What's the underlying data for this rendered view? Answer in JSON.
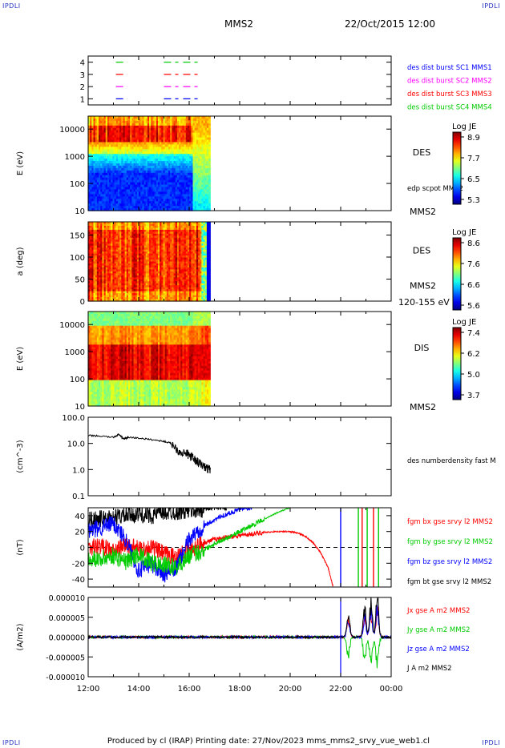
{
  "corner_labels": {
    "tl": "IPDLI",
    "tr": "IPDLI",
    "bl": "IPDLI",
    "br": "IPDLI"
  },
  "header": {
    "spacecraft": "MMS2",
    "datetime": "22/Oct/2015 12:00"
  },
  "footer": "Produced by cl (IRAP)   Printing date: 27/Nov/2023   mms_mms2_srvy_vue_web1.cl",
  "chart_data": [
    {
      "id": "burst",
      "type": "line",
      "ylim": [
        0.5,
        4.5
      ],
      "yticks": [
        "1",
        "2",
        "3",
        "4"
      ],
      "time_range": [
        "12:00",
        "24:00"
      ],
      "series": [
        {
          "name": "des dist burst SC1 MMS1",
          "level": 1,
          "color": "#0000ff",
          "segments": [
            [
              13.1,
              13.55
            ],
            [
              15.0,
              16.5
            ]
          ]
        },
        {
          "name": "des dist burst SC2 MMS2",
          "level": 2,
          "color": "#ff00ff",
          "segments": [
            [
              13.1,
              13.55
            ],
            [
              15.0,
              16.5
            ]
          ]
        },
        {
          "name": "des dist burst SC3 MMS3",
          "level": 3,
          "color": "#ff0000",
          "segments": [
            [
              13.1,
              13.55
            ],
            [
              15.0,
              16.5
            ]
          ]
        },
        {
          "name": "des dist burst SC4 MMS4",
          "level": 4,
          "color": "#00cc00",
          "segments": [
            [
              13.1,
              13.55
            ],
            [
              15.0,
              16.5
            ]
          ]
        }
      ]
    },
    {
      "id": "des_energy",
      "type": "heatmap",
      "ylabel": "E (eV)",
      "yscale": "log",
      "ylim": [
        10,
        30000
      ],
      "yticks": [
        "10",
        "100",
        "1000",
        "10000"
      ],
      "data_span": [
        "12:00",
        "16:50"
      ],
      "label": "DES",
      "extra_label": "edp scpot MMS2",
      "bottom_label": "MMS2",
      "colorbar": {
        "title": "Log JE",
        "ticks": [
          "8.9",
          "7.7",
          "6.5",
          "5.3"
        ]
      }
    },
    {
      "id": "des_pitch",
      "type": "heatmap",
      "ylabel": "a (deg)",
      "ylim": [
        0,
        180
      ],
      "yticks": [
        "0",
        "50",
        "100",
        "150"
      ],
      "data_span": [
        "12:00",
        "16:50"
      ],
      "label": "DES",
      "extra_label": "MMS2",
      "bottom_label": "120-155 eV",
      "colorbar": {
        "title": "Log JE",
        "ticks": [
          "8.6",
          "7.6",
          "6.6",
          "5.6"
        ]
      }
    },
    {
      "id": "dis_energy",
      "type": "heatmap",
      "ylabel": "E (eV)",
      "yscale": "log",
      "ylim": [
        10,
        30000
      ],
      "yticks": [
        "10",
        "100",
        "1000",
        "10000"
      ],
      "data_span": [
        "12:00",
        "16:50"
      ],
      "label": "DIS",
      "bottom_label": "MMS2",
      "colorbar": {
        "title": "Log JE",
        "ticks": [
          "7.4",
          "6.2",
          "5.0",
          "3.7"
        ]
      }
    },
    {
      "id": "density",
      "type": "line",
      "ylabel": "(cm^-3)",
      "yscale": "log",
      "ylim": [
        0.1,
        100
      ],
      "yticks": [
        "0.1",
        "1.0",
        "10.0",
        "100.0"
      ],
      "series": [
        {
          "name": "des numberdensity fast M",
          "color": "#000000",
          "x": [
            12.0,
            12.5,
            13.0,
            13.2,
            13.4,
            13.6,
            14.0,
            14.5,
            15.0,
            15.3,
            15.6,
            15.9,
            16.1,
            16.3,
            16.5,
            16.7,
            16.85
          ],
          "y": [
            20,
            19,
            17,
            22,
            15,
            17,
            16,
            14,
            12,
            10,
            5,
            4,
            3,
            2,
            1.5,
            1.1,
            1.0
          ]
        }
      ]
    },
    {
      "id": "bfield",
      "type": "line",
      "ylabel": "(nT)",
      "ylim": [
        -50,
        50
      ],
      "yticks": [
        "-40",
        "-20",
        "0",
        "20",
        "40"
      ],
      "zero_line": true,
      "series": [
        {
          "name": "fgm bx gse srvy l2 MMS2",
          "color": "#ff0000",
          "x": [
            12.0,
            12.5,
            13.0,
            13.5,
            14.0,
            14.5,
            15.0,
            15.5,
            16.0,
            16.5,
            17.0,
            17.5,
            18.0,
            18.5,
            19.0,
            19.5,
            20.0,
            20.3,
            20.6,
            20.9,
            21.2,
            21.5,
            21.7
          ],
          "y": [
            0,
            2,
            -5,
            3,
            -2,
            0,
            -8,
            -12,
            -4,
            5,
            10,
            13,
            15,
            17,
            19,
            20,
            20,
            18,
            14,
            6,
            -6,
            -25,
            -50
          ]
        },
        {
          "name": "fgm by gse srvy l2 MMS2",
          "color": "#00cc00",
          "x": [
            12.0,
            12.5,
            13.0,
            13.5,
            14.0,
            14.5,
            15.0,
            15.5,
            16.0,
            16.5,
            17.0,
            17.5,
            18.0,
            18.5,
            19.0,
            19.5,
            20.0
          ],
          "y": [
            -12,
            -15,
            -10,
            -18,
            -8,
            -20,
            -22,
            -25,
            -10,
            -5,
            5,
            12,
            20,
            28,
            36,
            44,
            50
          ]
        },
        {
          "name": "fgm bz gse srvy l2 MMS2",
          "color": "#0000ff",
          "x": [
            12.0,
            12.5,
            13.0,
            13.5,
            14.0,
            14.5,
            15.0,
            15.5,
            16.0,
            16.5,
            17.0,
            17.5,
            18.0,
            18.5
          ],
          "y": [
            20,
            25,
            30,
            10,
            -30,
            -20,
            -35,
            -25,
            10,
            25,
            35,
            42,
            48,
            50
          ]
        },
        {
          "name": "fgm bt gse srvy l2 MMS2",
          "color": "#000000",
          "x": [
            12.0,
            12.5,
            13.0,
            13.5,
            14.0,
            14.5,
            15.0,
            15.5,
            16.0,
            16.5,
            17.0,
            17.5
          ],
          "y": [
            35,
            36,
            38,
            40,
            42,
            40,
            44,
            45,
            46,
            48,
            50,
            50
          ]
        }
      ],
      "spikes": [
        {
          "t": 22.0,
          "color": "#0000ff"
        },
        {
          "t": 22.7,
          "color": "#00cc00"
        },
        {
          "t": 22.85,
          "color": "#ff0000"
        },
        {
          "t": 23.05,
          "color": "#00cc00"
        },
        {
          "t": 23.3,
          "color": "#ff0000"
        },
        {
          "t": 23.5,
          "color": "#00cc00"
        }
      ]
    },
    {
      "id": "current",
      "type": "line",
      "ylabel": "(A/m2)",
      "ylim": [
        -1e-05,
        1e-05
      ],
      "yticks": [
        "-0.000010",
        "-0.000005",
        "0.000000",
        "0.000005",
        "0.000010"
      ],
      "series": [
        {
          "name": "Jx gse A m2 MMS2",
          "color": "#ff0000"
        },
        {
          "name": "Jy gse A m2 MMS2",
          "color": "#00cc00"
        },
        {
          "name": "Jz gse A m2 MMS2",
          "color": "#0000ff"
        },
        {
          "name": "J A m2 MMS2",
          "color": "#000000"
        }
      ],
      "events": [
        {
          "t": 22.3,
          "amp": 6.5e-06,
          "color": "#0000ff"
        },
        {
          "t": 22.95,
          "amp": 7.5e-06,
          "color": "#000000"
        },
        {
          "t": 23.2,
          "amp": 9e-06,
          "color": "#000000"
        },
        {
          "t": 23.45,
          "amp": 1e-05,
          "color": "#000000"
        }
      ],
      "vertical_lines": [
        {
          "t": 22.0,
          "color": "#0000ff"
        }
      ]
    }
  ],
  "x_axis": {
    "ticks": [
      "12:00",
      "14:00",
      "16:00",
      "18:00",
      "20:00",
      "22:00",
      "00:00"
    ]
  }
}
